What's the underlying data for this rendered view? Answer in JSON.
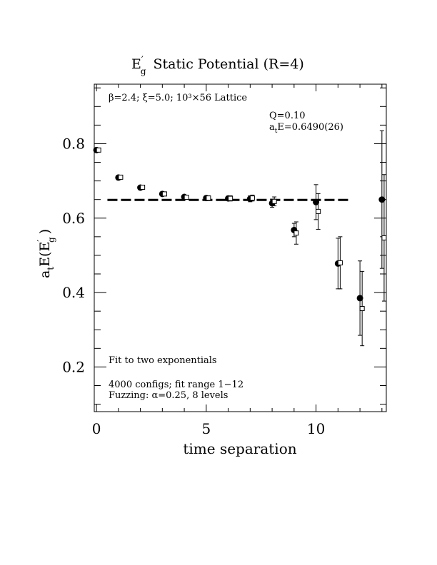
{
  "chart_data": {
    "type": "scatter",
    "title_main": "E",
    "title_sub": "g",
    "title_sup": "′",
    "title_rest": "Static Potential (R=4)",
    "xlabel": "time separation",
    "ylabel_main": "a",
    "ylabel_sub": "t",
    "ylabel_mid": "E(E",
    "ylabel_sub2": "g",
    "ylabel_sup2": "′",
    "ylabel_end": ")",
    "xlim": [
      -0.1,
      13.2
    ],
    "ylim": [
      0.08,
      0.96
    ],
    "xticks": [
      0,
      5,
      10
    ],
    "xtick_labels": [
      "0",
      "5",
      "10"
    ],
    "yticks": [
      0.2,
      0.4,
      0.6,
      0.8
    ],
    "ytick_labels": [
      "0.2",
      "0.4",
      "0.6",
      "0.8"
    ],
    "fit_value": 0.649,
    "fit_range": [
      0.5,
      11.5
    ],
    "series": [
      {
        "marker": "filled-circle",
        "x": [
          0,
          1,
          2,
          3,
          4,
          5,
          6,
          7,
          8,
          9,
          10,
          11,
          12,
          13
        ],
        "y": [
          0.783,
          0.709,
          0.682,
          0.665,
          0.657,
          0.654,
          0.653,
          0.652,
          0.64,
          0.568,
          0.643,
          0.478,
          0.385,
          0.65
        ],
        "err": [
          0.003,
          0.004,
          0.004,
          0.004,
          0.005,
          0.006,
          0.006,
          0.008,
          0.011,
          0.018,
          0.047,
          0.068,
          0.1,
          0.185
        ]
      },
      {
        "marker": "open-square",
        "x": [
          0.1,
          1.1,
          2.1,
          3.1,
          4.1,
          5.1,
          6.1,
          7.1,
          8.1,
          9.1,
          10.1,
          11.1,
          12.1,
          13.1
        ],
        "y": [
          0.783,
          0.71,
          0.683,
          0.665,
          0.656,
          0.654,
          0.653,
          0.654,
          0.645,
          0.56,
          0.618,
          0.48,
          0.357,
          0.547
        ],
        "err": [
          0.003,
          0.004,
          0.004,
          0.005,
          0.005,
          0.006,
          0.007,
          0.008,
          0.012,
          0.03,
          0.048,
          0.07,
          0.1,
          0.17
        ]
      }
    ],
    "annotations": {
      "lattice": "β=2.4; ξ=5.0; 10³×56 Lattice",
      "q": "Q=0.10",
      "energy_main": "a",
      "energy_sub": "t",
      "energy_rest": "E=0.6490(26)",
      "fit_line1": "Fit to two exponentials",
      "fit_line2": "4000 configs; fit range 1−12",
      "fit_line3": "Fuzzing: α=0.25, 8 levels"
    }
  }
}
